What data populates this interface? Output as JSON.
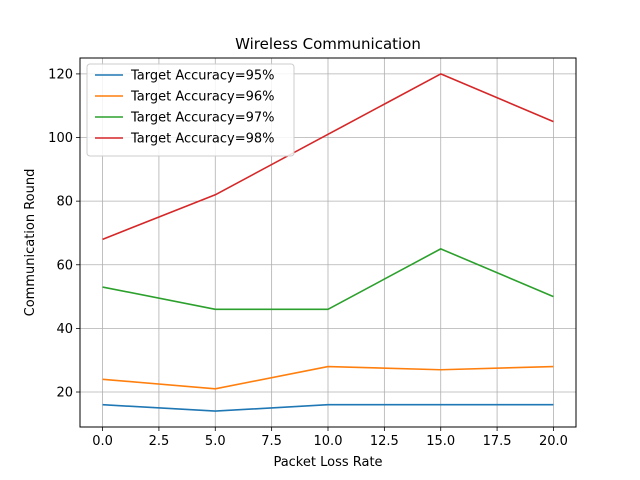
{
  "chart_data": {
    "type": "line",
    "title": "Wireless Communication",
    "xlabel": "Packet Loss Rate",
    "ylabel": "Communication Round",
    "x": [
      0,
      5,
      10,
      15,
      20
    ],
    "xlim": [
      -1,
      21
    ],
    "ylim": [
      9,
      125
    ],
    "xticks": [
      0.0,
      2.5,
      5.0,
      7.5,
      10.0,
      12.5,
      15.0,
      17.5,
      20.0
    ],
    "xtick_labels": [
      "0.0",
      "2.5",
      "5.0",
      "7.5",
      "10.0",
      "12.5",
      "15.0",
      "17.5",
      "20.0"
    ],
    "yticks": [
      20,
      40,
      60,
      80,
      100,
      120
    ],
    "ytick_labels": [
      "20",
      "40",
      "60",
      "80",
      "100",
      "120"
    ],
    "grid": true,
    "legend_position": "top-left",
    "series": [
      {
        "name": "Target Accuracy=95%",
        "color": "#1f77b4",
        "values": [
          16,
          14,
          16,
          16,
          16
        ]
      },
      {
        "name": "Target Accuracy=96%",
        "color": "#ff7f0e",
        "values": [
          24,
          21,
          28,
          27,
          28
        ]
      },
      {
        "name": "Target Accuracy=97%",
        "color": "#2ca02c",
        "values": [
          53,
          46,
          46,
          65,
          50
        ]
      },
      {
        "name": "Target Accuracy=98%",
        "color": "#d62728",
        "values": [
          68,
          82,
          101,
          120,
          105
        ]
      }
    ]
  }
}
